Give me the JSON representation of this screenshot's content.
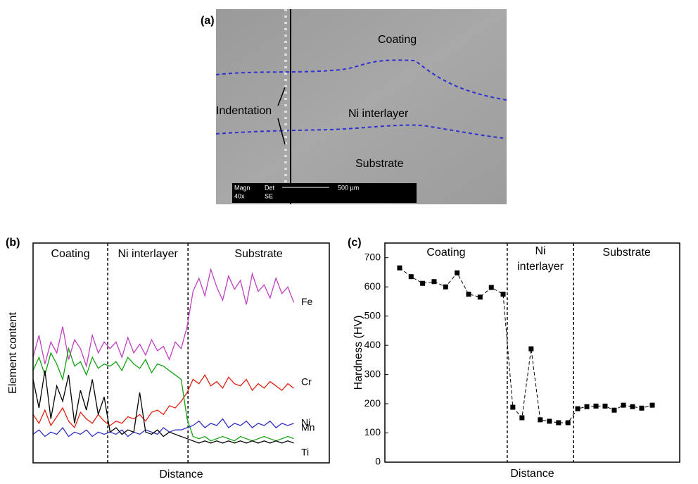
{
  "panel_a": {
    "label": "(a)",
    "texts": [
      "Coating",
      "Indentation",
      "Ni interlayer",
      "Substrate"
    ],
    "scale_bar": {
      "magn_title": "Magn",
      "magn": "40x",
      "det_title": "Det",
      "det": "SE",
      "length": "500 µm"
    }
  },
  "chart_data": [
    {
      "type": "line",
      "panel": "(b)",
      "ylabel": "Element content",
      "xlabel": "Distance",
      "regions": [
        "Coating",
        "Ni interlayer",
        "Substrate"
      ],
      "boundaries": [
        25.2,
        52.3
      ],
      "xlim": [
        0,
        100
      ],
      "ylim": [
        0,
        100
      ],
      "x": [
        0,
        2,
        4,
        6,
        8,
        10,
        12,
        14,
        16,
        18,
        20,
        22,
        24,
        26,
        28,
        30,
        32,
        34,
        36,
        38,
        40,
        42,
        44,
        46,
        48,
        50,
        52,
        54,
        56,
        58,
        60,
        62,
        64,
        66,
        68,
        70,
        72,
        74,
        76,
        78,
        80,
        82,
        84,
        86,
        88
      ],
      "series": [
        {
          "name": "Fe",
          "color": "#c040c0",
          "values": [
            48,
            58,
            45,
            55,
            50,
            62,
            47,
            56,
            52,
            44,
            58,
            50,
            55,
            52,
            55,
            48,
            57,
            50,
            54,
            49,
            56,
            51,
            53,
            47,
            55,
            52,
            62,
            78,
            84,
            76,
            88,
            80,
            74,
            85,
            79,
            83,
            72,
            86,
            78,
            81,
            75,
            84,
            77,
            80,
            73
          ]
        },
        {
          "name": "Cr",
          "color": "#e02010",
          "values": [
            22,
            18,
            24,
            17,
            21,
            25,
            19,
            16,
            23,
            20,
            18,
            22,
            19,
            17,
            19,
            18,
            21,
            20,
            22,
            19,
            23,
            24,
            22,
            26,
            25,
            28,
            32,
            38,
            36,
            40,
            35,
            37,
            34,
            39,
            36,
            35,
            38,
            33,
            36,
            34,
            37,
            35,
            33,
            36,
            34
          ]
        },
        {
          "name": "Mn",
          "color": "#10a010",
          "values": [
            42,
            48,
            40,
            50,
            45,
            38,
            52,
            44,
            46,
            40,
            48,
            43,
            45,
            44,
            46,
            42,
            48,
            45,
            43,
            47,
            41,
            45,
            44,
            42,
            40,
            38,
            20,
            12,
            11,
            12,
            10,
            11,
            12,
            11,
            10,
            12,
            11,
            10,
            11,
            12,
            11,
            10,
            11,
            12,
            11
          ]
        },
        {
          "name": "Ni",
          "color": "#3030c0",
          "values": [
            13,
            15,
            12,
            14,
            13,
            16,
            12,
            14,
            13,
            15,
            12,
            14,
            13,
            14,
            13,
            15,
            12,
            14,
            13,
            15,
            14,
            13,
            16,
            14,
            15,
            15,
            16,
            17,
            19,
            16,
            18,
            17,
            20,
            16,
            18,
            17,
            19,
            16,
            18,
            17,
            19,
            16,
            18,
            17,
            18
          ]
        },
        {
          "name": "Ti",
          "color": "#000000",
          "values": [
            38,
            25,
            42,
            20,
            35,
            28,
            40,
            18,
            33,
            24,
            38,
            22,
            30,
            14,
            16,
            13,
            15,
            14,
            32,
            14,
            13,
            15,
            12,
            14,
            13,
            12,
            11,
            10,
            9,
            10,
            9,
            10,
            9,
            10,
            9,
            10,
            9,
            10,
            9,
            10,
            9,
            10,
            9,
            10,
            9
          ]
        }
      ]
    },
    {
      "type": "scatter",
      "panel": "(c)",
      "ylabel": "Hardness (HV)",
      "xlabel": "Distance",
      "regions": [
        [
          "Coating"
        ],
        [
          "Ni",
          "interlayer"
        ],
        [
          "Substrate"
        ]
      ],
      "boundaries": [
        41.5,
        64.0
      ],
      "xlim": [
        0,
        100
      ],
      "ylim": [
        0,
        750
      ],
      "yticks": [
        0,
        100,
        200,
        300,
        400,
        500,
        600,
        700
      ],
      "x": [
        5.0,
        8.9,
        12.8,
        16.7,
        20.6,
        24.5,
        28.4,
        32.3,
        36.1,
        40.1,
        43.4,
        46.5,
        49.6,
        52.7,
        55.8,
        58.9,
        62.1,
        65.4,
        68.5,
        71.6,
        74.7,
        77.8,
        80.9,
        84.0,
        87.1,
        90.7
      ],
      "values": [
        665,
        635,
        612,
        618,
        600,
        648,
        575,
        565,
        598,
        575,
        188,
        152,
        388,
        145,
        140,
        135,
        135,
        183,
        190,
        192,
        192,
        178,
        195,
        190,
        185,
        195
      ],
      "color": "#000000"
    }
  ]
}
